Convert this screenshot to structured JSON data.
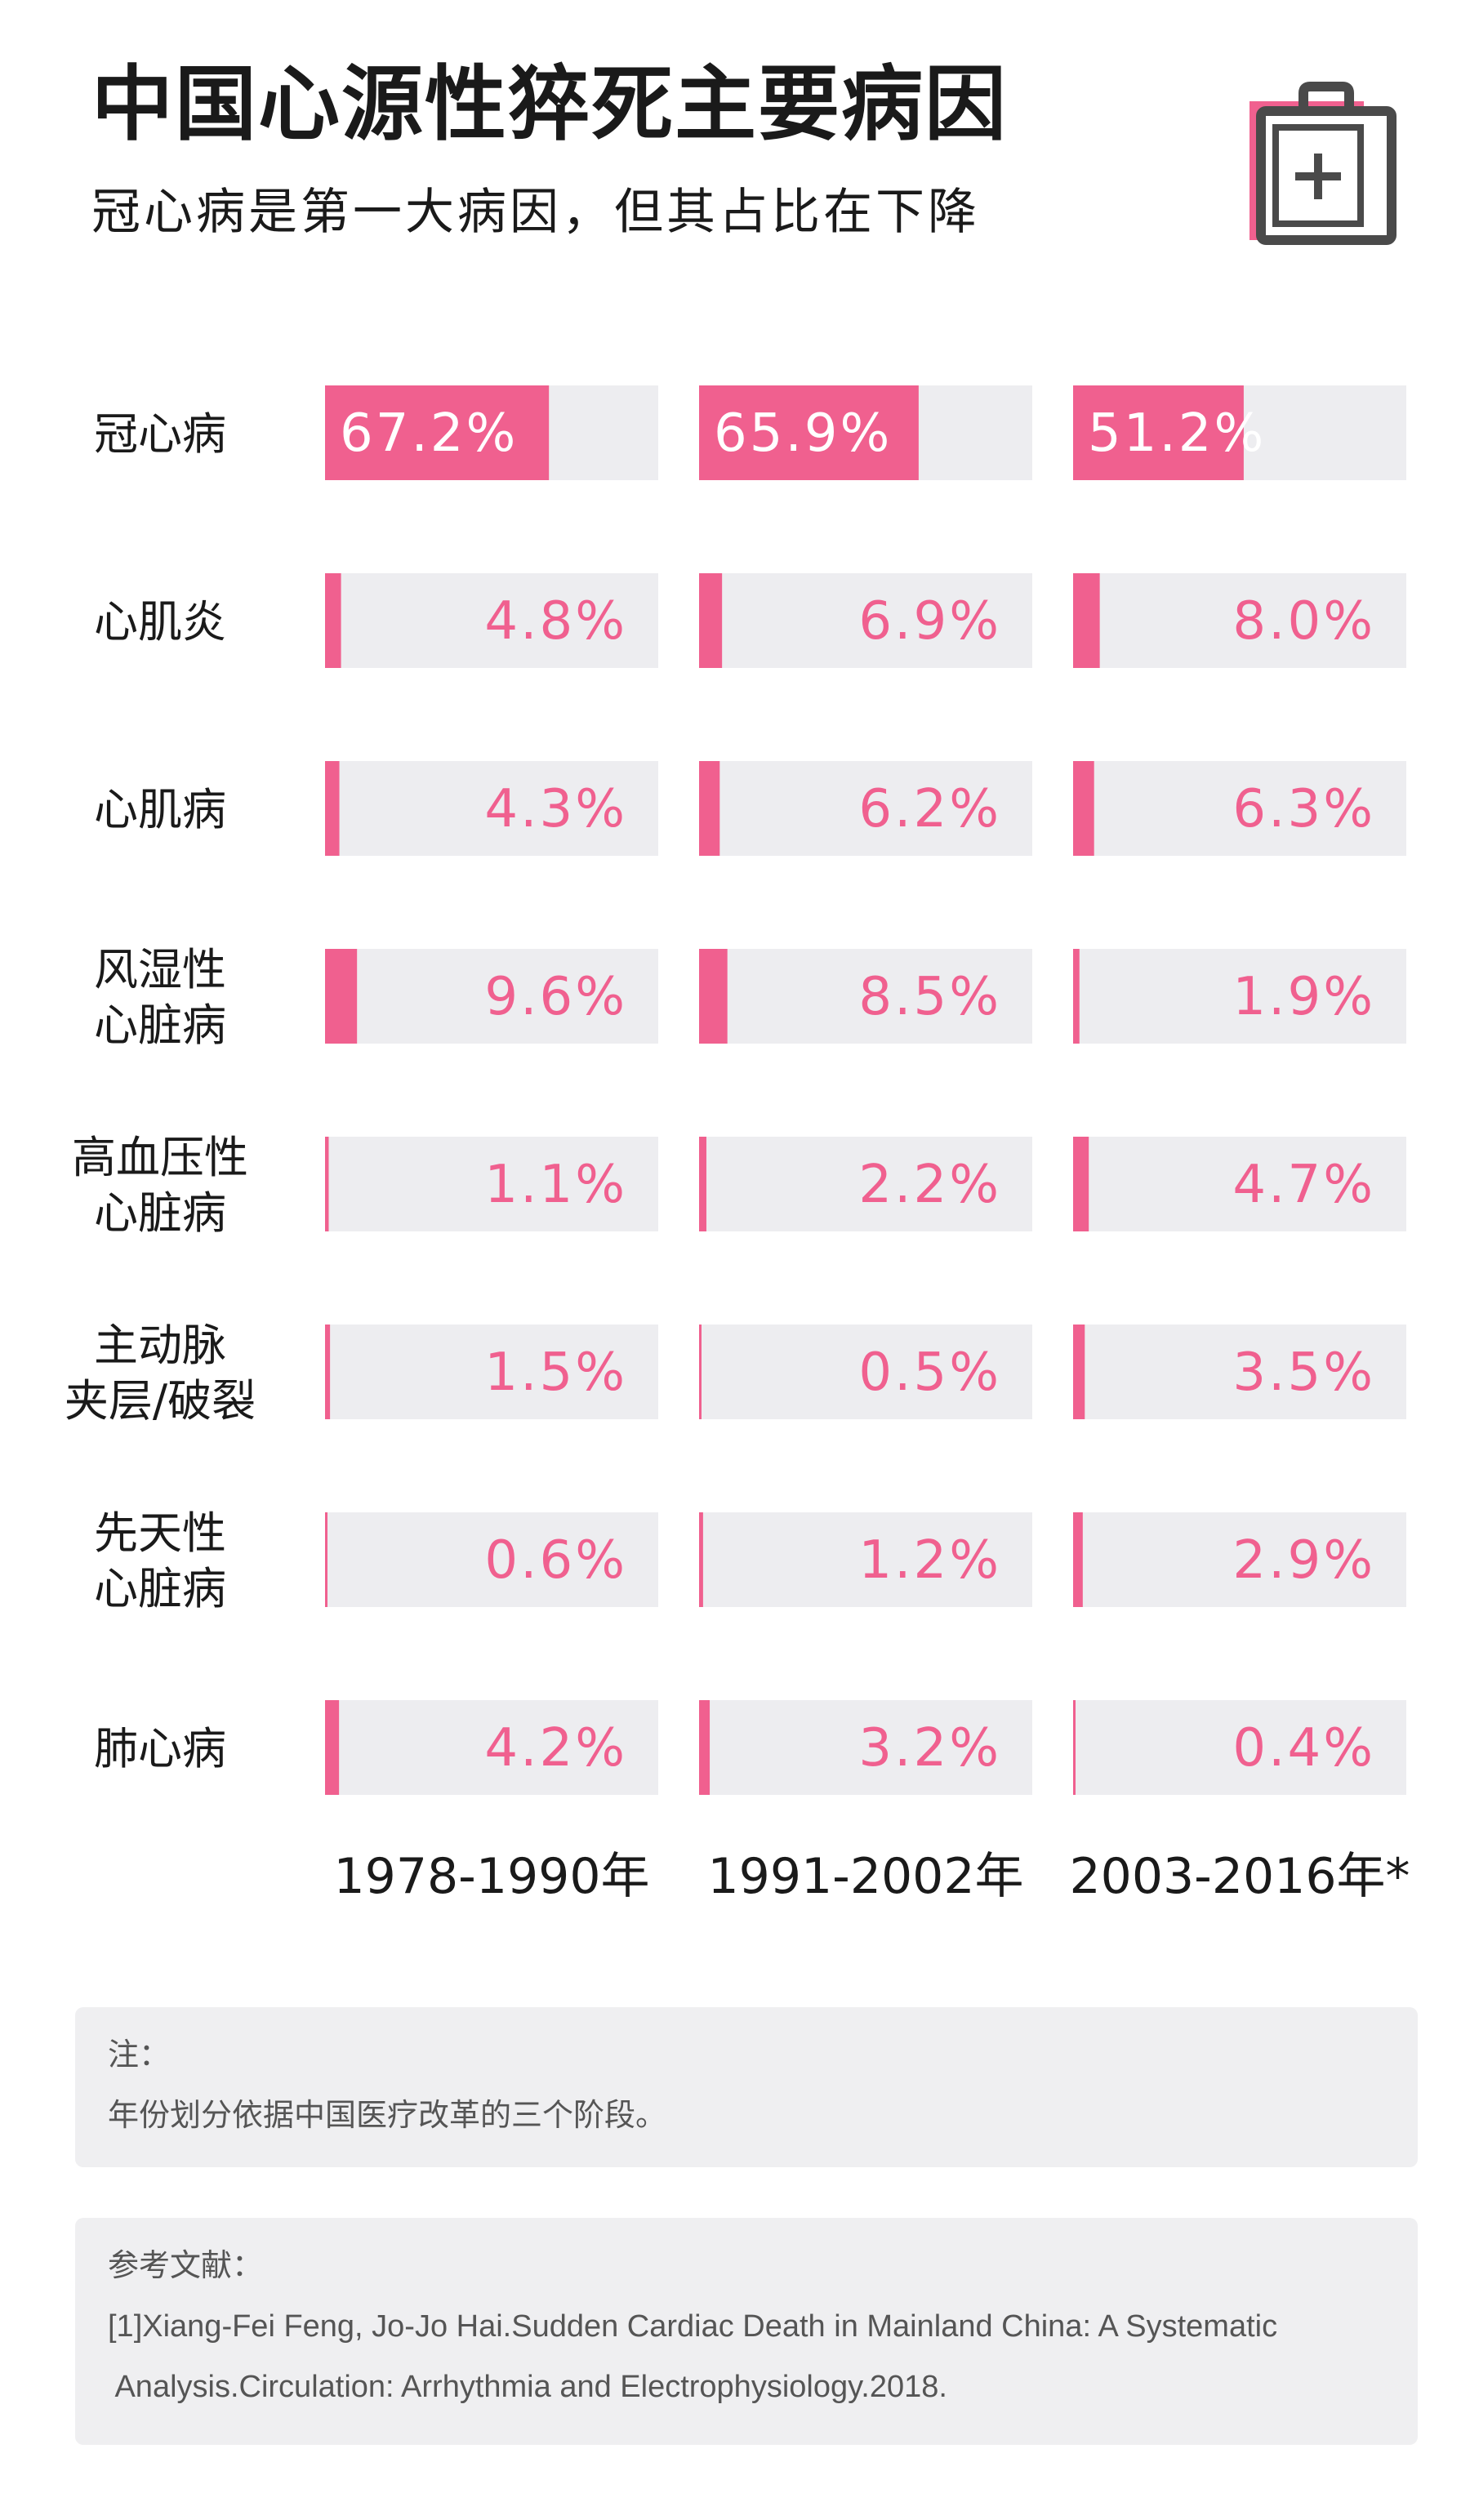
{
  "header": {
    "title": "中国心源性猝死主要病因",
    "subtitle": "冠心病是第一大病因，但其占比在下降",
    "icon": "medical-clipboard-plus-icon"
  },
  "colors": {
    "accent": "#f0608f",
    "track": "#ededf0",
    "icon_dark": "#4a4a4a"
  },
  "chart_data": {
    "type": "bar",
    "orientation": "horizontal",
    "xlim": [
      0,
      100
    ],
    "categories": [
      "冠心病",
      "心肌炎",
      "心肌病",
      "风湿性\n心脏病",
      "高血压性\n心脏病",
      "主动脉\n夹层/破裂",
      "先天性\n心脏病",
      "肺心病"
    ],
    "series": [
      {
        "name": "1978-1990年",
        "values": [
          67.2,
          4.8,
          4.3,
          9.6,
          1.1,
          1.5,
          0.6,
          4.2
        ]
      },
      {
        "name": "1991-2002年",
        "values": [
          65.9,
          6.9,
          6.2,
          8.5,
          2.2,
          0.5,
          1.2,
          3.2
        ]
      },
      {
        "name": "2003-2016年*",
        "values": [
          51.2,
          8.0,
          6.3,
          1.9,
          4.7,
          3.5,
          2.9,
          0.4
        ]
      }
    ],
    "value_labels": [
      [
        "67.2%",
        "4.8%",
        "4.3%",
        "9.6%",
        "1.1%",
        "1.5%",
        "0.6%",
        "4.2%"
      ],
      [
        "65.9%",
        "6.9%",
        "6.2%",
        "8.5%",
        "2.2%",
        "0.5%",
        "1.2%",
        "3.2%"
      ],
      [
        "51.2%",
        "8.0%",
        "6.3%",
        "1.9%",
        "4.7%",
        "3.5%",
        "2.9%",
        "0.4%"
      ]
    ]
  },
  "note": {
    "heading": "注：",
    "text": "年份划分依据中国医疗改革的三个阶段。"
  },
  "references": {
    "heading": "参考文献：",
    "line1": "[1]Xiang-Fei Feng, Jo-Jo Hai.Sudden Cardiac Death in Mainland China: A Systematic",
    "line2": " Analysis.Circulation: Arrhythmia and Electrophysiology.2018."
  }
}
